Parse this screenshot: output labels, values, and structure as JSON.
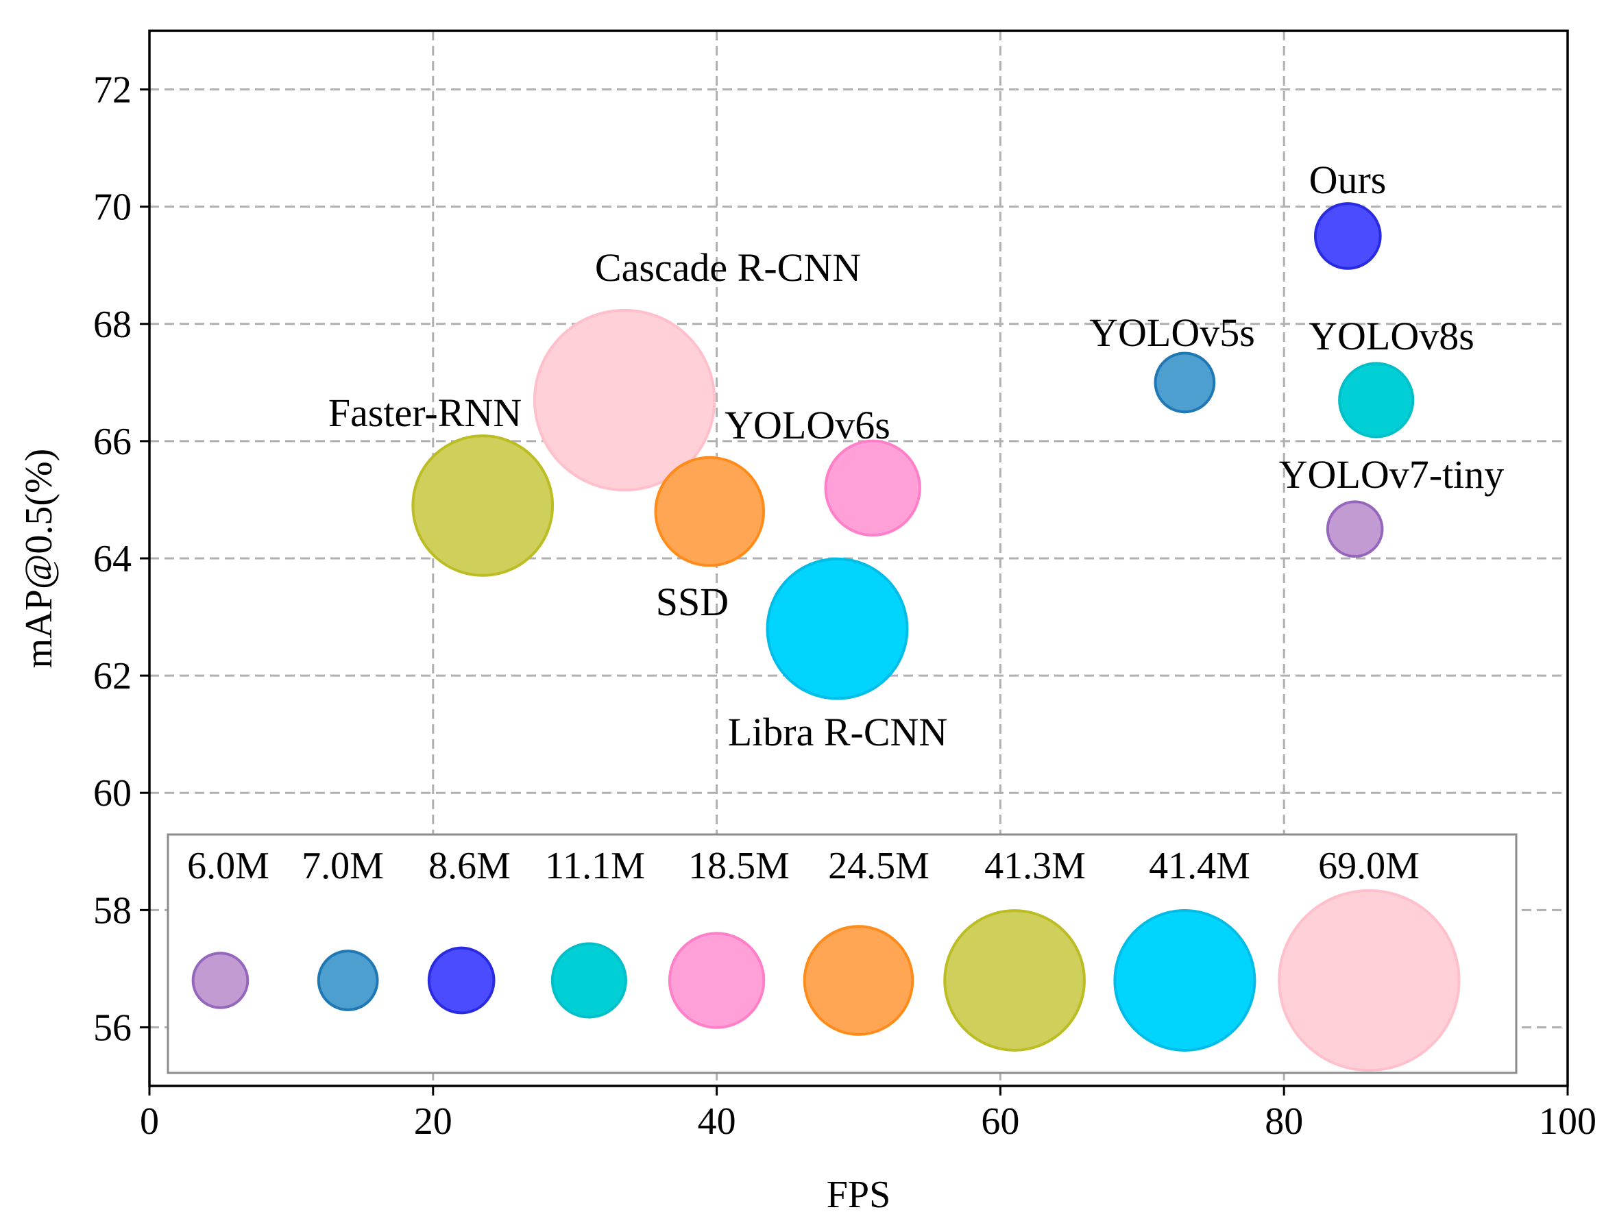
{
  "chart_data": {
    "type": "scatter",
    "subtype": "bubble",
    "title": "",
    "xlabel": "FPS",
    "ylabel": "mAP@0.5(%)",
    "xlim": [
      0,
      100
    ],
    "ylim": [
      55,
      73
    ],
    "xticks": [
      0,
      20,
      40,
      60,
      80,
      100
    ],
    "yticks": [
      56,
      58,
      60,
      62,
      64,
      66,
      68,
      70,
      72
    ],
    "grid": true,
    "size_unit": "Params (M)",
    "series": [
      {
        "name": "Ours",
        "fps": 84.5,
        "map": 69.5,
        "params": 8.6,
        "color": "#4b4bff",
        "stroke": "#2a2ae0"
      },
      {
        "name": "Cascade R-CNN",
        "fps": 33.5,
        "map": 66.7,
        "params": 69.0,
        "color": "#ffd0d8",
        "stroke": "#ffc0cb"
      },
      {
        "name": "YOLOv5s",
        "fps": 73.0,
        "map": 67.0,
        "params": 7.0,
        "color": "#4d9fd0",
        "stroke": "#1f77b4"
      },
      {
        "name": "YOLOv8s",
        "fps": 86.5,
        "map": 66.7,
        "params": 11.1,
        "color": "#00cfd6",
        "stroke": "#00bfc8"
      },
      {
        "name": "Faster-RNN",
        "fps": 23.5,
        "map": 64.9,
        "params": 41.3,
        "color": "#cfcf5c",
        "stroke": "#bcbd22"
      },
      {
        "name": "YOLOv6s",
        "fps": 51.0,
        "map": 65.2,
        "params": 18.5,
        "color": "#ffa0d8",
        "stroke": "#ff7fc8"
      },
      {
        "name": "SSD",
        "fps": 39.5,
        "map": 64.8,
        "params": 24.5,
        "color": "#ffa655",
        "stroke": "#ff8c1a"
      },
      {
        "name": "YOLOv7-tiny",
        "fps": 85.0,
        "map": 64.5,
        "params": 6.0,
        "color": "#c39bd3",
        "stroke": "#9467bd"
      },
      {
        "name": "Libra R-CNN",
        "fps": 48.5,
        "map": 62.8,
        "params": 41.4,
        "color": "#00d4ff",
        "stroke": "#00bde8"
      }
    ],
    "legend": {
      "placement": "bottom",
      "entries": [
        {
          "label": "6.0M",
          "params": 6.0,
          "color": "#c39bd3",
          "stroke": "#9467bd"
        },
        {
          "label": "7.0M",
          "params": 7.0,
          "color": "#4d9fd0",
          "stroke": "#1f77b4"
        },
        {
          "label": "8.6M",
          "params": 8.6,
          "color": "#4b4bff",
          "stroke": "#2a2ae0"
        },
        {
          "label": "11.1M",
          "params": 11.1,
          "color": "#00cfd6",
          "stroke": "#00bfc8"
        },
        {
          "label": "18.5M",
          "params": 18.5,
          "color": "#ffa0d8",
          "stroke": "#ff7fc8"
        },
        {
          "label": "24.5M",
          "params": 24.5,
          "color": "#ffa655",
          "stroke": "#ff8c1a"
        },
        {
          "label": "41.3M",
          "params": 41.3,
          "color": "#cfcf5c",
          "stroke": "#bcbd22"
        },
        {
          "label": "41.4M",
          "params": 41.4,
          "color": "#00d4ff",
          "stroke": "#00bde8"
        },
        {
          "label": "69.0M",
          "params": 69.0,
          "color": "#ffd0d8",
          "stroke": "#ffc0cb"
        }
      ]
    }
  }
}
